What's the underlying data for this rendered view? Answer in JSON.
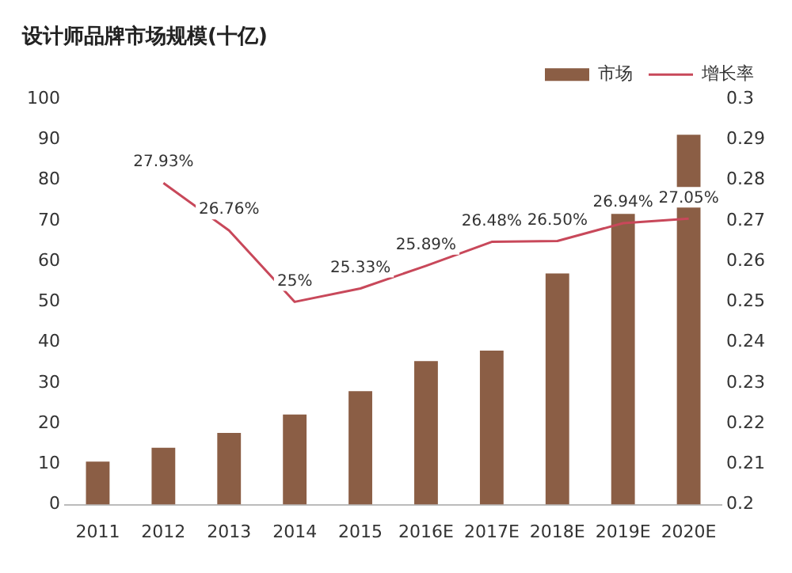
{
  "chart_data": {
    "type": "bar",
    "title": "设计师品牌市场规模(十亿)",
    "categories": [
      "2011",
      "2012",
      "2013",
      "2014",
      "2015",
      "2016E",
      "2017E",
      "2018E",
      "2019E",
      "2020E"
    ],
    "series": [
      {
        "name": "市场",
        "color": "#8b5e45",
        "values": [
          10.6,
          14,
          17.7,
          22.2,
          28,
          35.4,
          38,
          57,
          71.7,
          91.2
        ]
      },
      {
        "name": "增长率",
        "type": "line",
        "axis": "y2",
        "color": "#c8485a",
        "marker": "none",
        "values": [
          null,
          0.2793,
          0.2676,
          0.25,
          0.2533,
          0.2589,
          0.2648,
          0.265,
          0.2694,
          0.2705
        ],
        "value_labels": [
          null,
          "27.93%",
          "26.76%",
          "25%",
          "25.33%",
          "25.89%",
          "26.48%",
          "26.50%",
          "26.94%",
          "27.05%"
        ]
      }
    ],
    "ylim": [
      0,
      100
    ],
    "yticks": [
      0,
      10,
      20,
      30,
      40,
      50,
      60,
      70,
      80,
      90,
      100
    ],
    "y2lim": [
      0.2,
      0.3
    ],
    "y2ticks": [
      0.2,
      0.21,
      0.22,
      0.23,
      0.24,
      0.25,
      0.26,
      0.27,
      0.28,
      0.29,
      0.3
    ],
    "grid": false,
    "legend": "top right"
  }
}
